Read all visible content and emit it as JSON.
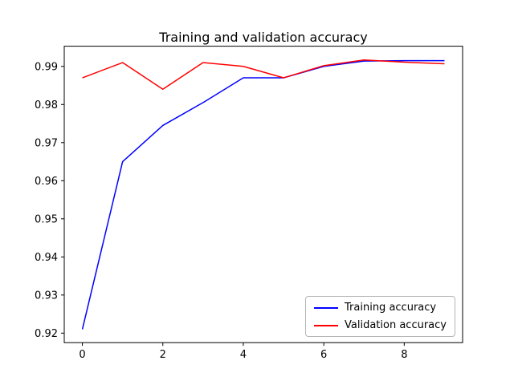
{
  "chart_data": {
    "type": "line",
    "title": "Training and validation accuracy",
    "xlabel": "",
    "ylabel": "",
    "x": [
      0,
      1,
      2,
      3,
      4,
      5,
      6,
      7,
      8,
      9
    ],
    "series": [
      {
        "name": "Training accuracy",
        "color": "#0000ff",
        "values": [
          0.921,
          0.965,
          0.9745,
          0.9805,
          0.987,
          0.987,
          0.99,
          0.9914,
          0.9915,
          0.9915
        ]
      },
      {
        "name": "Validation accuracy",
        "color": "#ff0000",
        "values": [
          0.987,
          0.991,
          0.984,
          0.991,
          0.99,
          0.987,
          0.9902,
          0.9917,
          0.9911,
          0.9907
        ]
      }
    ],
    "xlim": [
      -0.45,
      9.45
    ],
    "ylim": [
      0.9175,
      0.9953
    ],
    "xticks": [
      0,
      2,
      4,
      6,
      8
    ],
    "yticks": [
      0.92,
      0.93,
      0.94,
      0.95,
      0.96,
      0.97,
      0.98,
      0.99
    ],
    "grid": false,
    "legend_position": "lower right"
  }
}
